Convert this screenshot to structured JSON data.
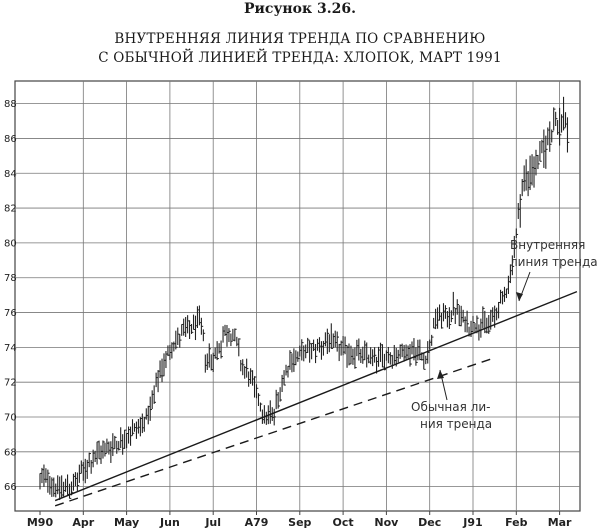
{
  "figure": {
    "label": "Рисунок 3.26.",
    "title_line1": "ВНУТРЕННЯЯ ЛИНИЯ ТРЕНДА ПО СРАВНЕНИЮ",
    "title_line2": "С ОБЫЧНОЙ ЛИНИЕЙ ТРЕНДА: ХЛОПОК, МАРТ 1991"
  },
  "chart_data": {
    "type": "bar",
    "title": "ВНУТРЕННЯЯ ЛИНИЯ ТРЕНДА ПО СРАВНЕНИЮ С ОБЫЧНОЙ ЛИНИЕЙ ТРЕНДА: ХЛОПОК, МАРТ 1991",
    "xlabel": "",
    "ylabel": "",
    "ylim": [
      64.6,
      89.3
    ],
    "y_ticks": [
      66,
      68,
      70,
      72,
      74,
      76,
      78,
      80,
      82,
      84,
      86,
      88
    ],
    "x_ticks": [
      "M90",
      "Apr",
      "May",
      "Jun",
      "Jul",
      "A79",
      "Sep",
      "Oct",
      "Nov",
      "Dec",
      "J91",
      "Feb",
      "Mar"
    ],
    "grid": true,
    "price_path": [
      [
        0.0,
        66.3
      ],
      [
        0.15,
        66.6
      ],
      [
        0.4,
        65.9
      ],
      [
        0.8,
        66.1
      ],
      [
        1.05,
        67.1
      ],
      [
        1.4,
        68.0
      ],
      [
        1.9,
        68.7
      ],
      [
        2.3,
        69.5
      ],
      [
        2.55,
        70.3
      ],
      [
        2.75,
        72.4
      ],
      [
        3.05,
        74.2
      ],
      [
        3.35,
        74.9
      ],
      [
        3.55,
        75.2
      ],
      [
        3.7,
        75.6
      ],
      [
        3.82,
        73.5
      ],
      [
        4.0,
        73.3
      ],
      [
        4.3,
        74.9
      ],
      [
        4.5,
        74.6
      ],
      [
        4.65,
        73.0
      ],
      [
        4.9,
        72.0
      ],
      [
        5.2,
        70.0
      ],
      [
        5.4,
        70.2
      ],
      [
        5.65,
        72.6
      ],
      [
        5.85,
        73.4
      ],
      [
        6.3,
        73.9
      ],
      [
        6.7,
        74.4
      ],
      [
        7.0,
        73.8
      ],
      [
        7.4,
        73.6
      ],
      [
        7.75,
        73.4
      ],
      [
        8.1,
        73.5
      ],
      [
        8.4,
        73.7
      ],
      [
        8.7,
        73.9
      ],
      [
        8.85,
        73.3
      ],
      [
        9.0,
        74.0
      ],
      [
        9.15,
        75.8
      ],
      [
        9.4,
        75.7
      ],
      [
        9.55,
        76.3
      ],
      [
        9.75,
        75.6
      ],
      [
        9.9,
        75.2
      ],
      [
        10.1,
        75.4
      ],
      [
        10.3,
        75.3
      ],
      [
        10.5,
        75.8
      ],
      [
        10.7,
        76.8
      ],
      [
        10.85,
        78.0
      ],
      [
        11.0,
        80.5
      ],
      [
        11.15,
        83.5
      ],
      [
        11.35,
        84.1
      ],
      [
        11.55,
        84.9
      ],
      [
        11.75,
        86.0
      ],
      [
        11.9,
        87.0
      ],
      [
        12.0,
        86.5
      ],
      [
        12.1,
        87.6
      ],
      [
        12.2,
        86.2
      ]
    ],
    "series": [
      {
        "name": "Внутренняя линия тренда",
        "style": "solid",
        "points": [
          [
            0.35,
            65.2
          ],
          [
            12.4,
            77.2
          ]
        ]
      },
      {
        "name": "Обычная линия тренда",
        "style": "dashed",
        "points": [
          [
            0.35,
            64.9
          ],
          [
            10.5,
            73.4
          ]
        ]
      }
    ],
    "annotations": [
      {
        "text_lines": [
          "Внутренняя",
          "линия тренда"
        ],
        "target": "inner-trendline"
      },
      {
        "text_lines": [
          "Обычная ли-",
          "ния тренда"
        ],
        "target": "regular-trendline"
      }
    ]
  }
}
